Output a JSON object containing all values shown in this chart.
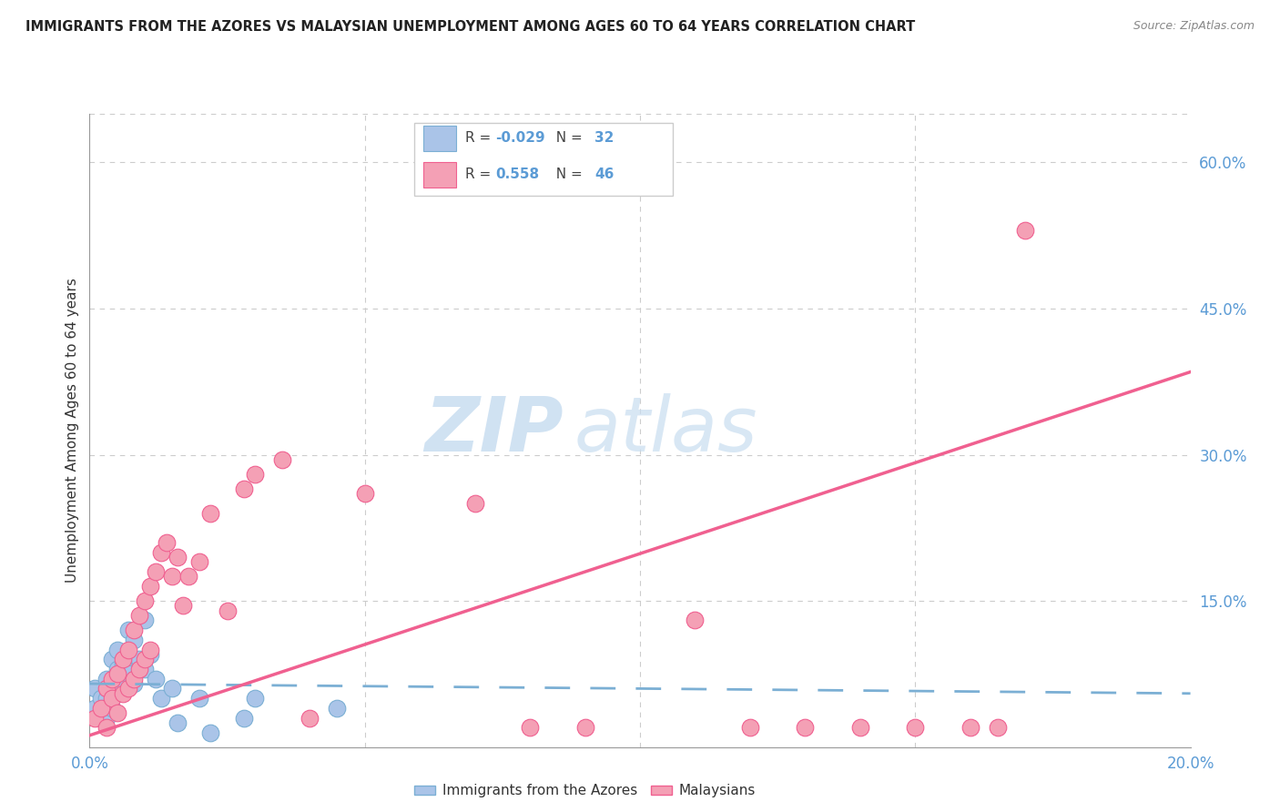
{
  "title": "IMMIGRANTS FROM THE AZORES VS MALAYSIAN UNEMPLOYMENT AMONG AGES 60 TO 64 YEARS CORRELATION CHART",
  "source": "Source: ZipAtlas.com",
  "ylabel": "Unemployment Among Ages 60 to 64 years",
  "color_azores": "#aac4e8",
  "color_azores_edge": "#7bafd4",
  "color_azores_line": "#7bafd4",
  "color_malaysian": "#f4a0b5",
  "color_malaysian_edge": "#f06090",
  "color_malaysian_line": "#f06090",
  "color_axis_text": "#5b9bd5",
  "color_grid": "#cccccc",
  "color_title": "#222222",
  "color_source": "#888888",
  "watermark_zip_color": "#c5d8ef",
  "watermark_atlas_color": "#c5d8ef",
  "azores_x": [
    0.001,
    0.001,
    0.002,
    0.002,
    0.003,
    0.003,
    0.003,
    0.004,
    0.004,
    0.004,
    0.005,
    0.005,
    0.005,
    0.006,
    0.006,
    0.007,
    0.007,
    0.008,
    0.008,
    0.009,
    0.01,
    0.01,
    0.011,
    0.012,
    0.013,
    0.015,
    0.016,
    0.02,
    0.022,
    0.028,
    0.03,
    0.045
  ],
  "azores_y": [
    0.06,
    0.04,
    0.05,
    0.03,
    0.07,
    0.05,
    0.03,
    0.09,
    0.06,
    0.04,
    0.1,
    0.08,
    0.055,
    0.085,
    0.06,
    0.12,
    0.075,
    0.11,
    0.065,
    0.09,
    0.13,
    0.08,
    0.095,
    0.07,
    0.05,
    0.06,
    0.025,
    0.05,
    0.015,
    0.03,
    0.05,
    0.04
  ],
  "malaysian_x": [
    0.001,
    0.002,
    0.003,
    0.003,
    0.004,
    0.004,
    0.005,
    0.005,
    0.006,
    0.006,
    0.007,
    0.007,
    0.008,
    0.008,
    0.009,
    0.009,
    0.01,
    0.01,
    0.011,
    0.011,
    0.012,
    0.013,
    0.014,
    0.015,
    0.016,
    0.017,
    0.018,
    0.02,
    0.022,
    0.025,
    0.028,
    0.03,
    0.035,
    0.04,
    0.05,
    0.07,
    0.08,
    0.09,
    0.11,
    0.12,
    0.13,
    0.14,
    0.15,
    0.16,
    0.165,
    0.17
  ],
  "malaysian_y": [
    0.03,
    0.04,
    0.06,
    0.02,
    0.07,
    0.05,
    0.075,
    0.035,
    0.09,
    0.055,
    0.1,
    0.06,
    0.12,
    0.07,
    0.135,
    0.08,
    0.15,
    0.09,
    0.165,
    0.1,
    0.18,
    0.2,
    0.21,
    0.175,
    0.195,
    0.145,
    0.175,
    0.19,
    0.24,
    0.14,
    0.265,
    0.28,
    0.295,
    0.03,
    0.26,
    0.25,
    0.02,
    0.02,
    0.13,
    0.02,
    0.02,
    0.02,
    0.02,
    0.02,
    0.02,
    0.53
  ],
  "xlim": [
    0.0,
    0.2
  ],
  "ylim": [
    0.0,
    0.65
  ],
  "xgrid": [
    0.05,
    0.1,
    0.15
  ],
  "ygrid": [
    0.15,
    0.3,
    0.45,
    0.6
  ],
  "right_yticks": [
    0.15,
    0.3,
    0.45,
    0.6
  ],
  "right_yticklabels": [
    "15.0%",
    "30.0%",
    "45.0%",
    "60.0%"
  ]
}
